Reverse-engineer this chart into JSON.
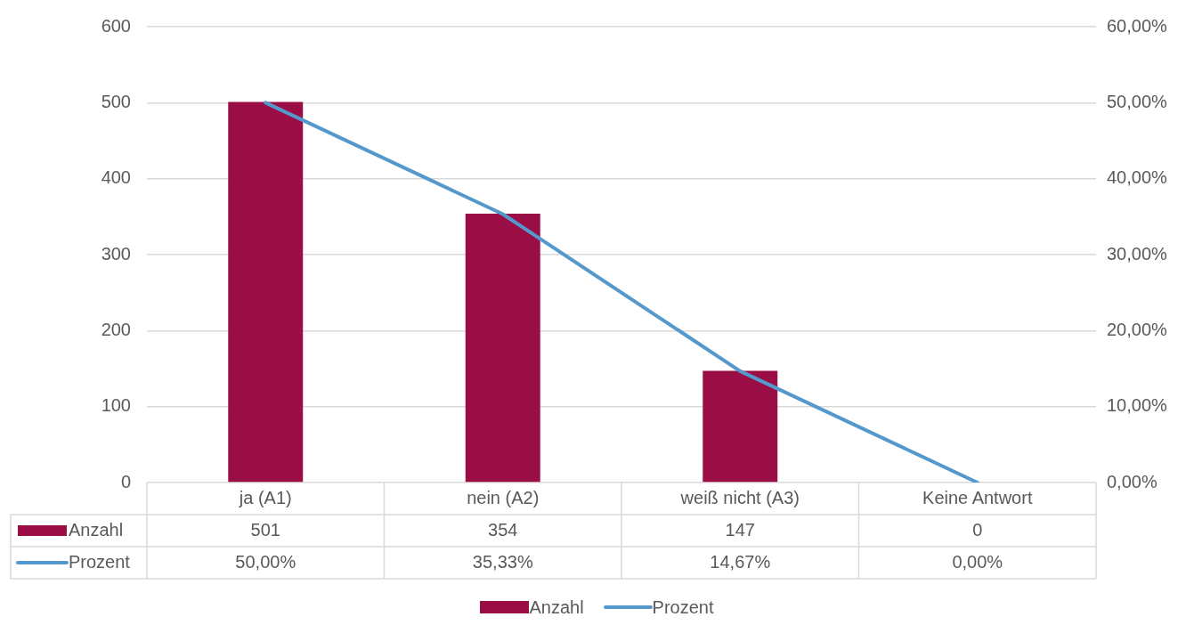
{
  "chart_data": {
    "type": "bar",
    "categories": [
      "ja (A1)",
      "nein (A2)",
      "weiß nicht (A3)",
      "Keine Antwort"
    ],
    "series": [
      {
        "name": "Anzahl",
        "color": "#9b0d45",
        "values": [
          501,
          354,
          147,
          0
        ],
        "value_labels": [
          "501",
          "354",
          "147",
          "0"
        ]
      },
      {
        "name": "Prozent",
        "type": "line",
        "axis": "y2",
        "color": "#5599cc",
        "values": [
          50.0,
          35.33,
          14.67,
          0.0
        ],
        "value_labels": [
          "50,00%",
          "35,33%",
          "14,67%",
          "0,00%"
        ],
        "marker": "none"
      }
    ],
    "ylim": [
      0,
      600
    ],
    "yticks": [
      0,
      100,
      200,
      300,
      400,
      500,
      600
    ],
    "y2lim": [
      0,
      60
    ],
    "y2ticks": [
      {
        "value": 0,
        "label": "0,00%"
      },
      {
        "value": 10,
        "label": "10,00%"
      },
      {
        "value": 20,
        "label": "20,00%"
      },
      {
        "value": 30,
        "label": "30,00%"
      },
      {
        "value": 40,
        "label": "40,00%"
      },
      {
        "value": 50,
        "label": "50,00%"
      },
      {
        "value": 60,
        "label": "60,00%"
      }
    ],
    "grid": "y",
    "legend": "bottom"
  }
}
